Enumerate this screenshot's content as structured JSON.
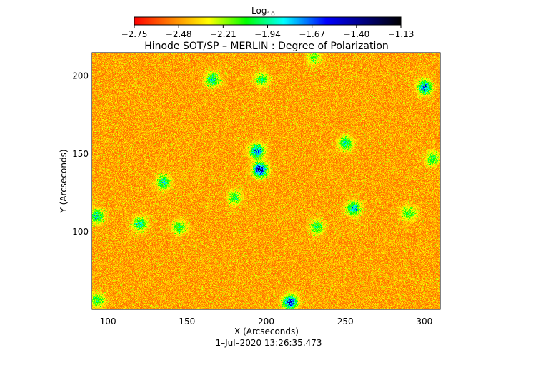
{
  "chart_data": {
    "type": "heatmap",
    "title": "Hinode SOT/SP – MERLIN : Degree of Polarization",
    "xlabel": "X (Arcseconds)",
    "ylabel": "Y (Arcseconds)",
    "footer": "1–Jul–2020 13:26:35.473",
    "xlim": [
      90,
      310
    ],
    "ylim": [
      50,
      215
    ],
    "xticks": [
      100,
      150,
      200,
      250,
      300
    ],
    "yticks": [
      100,
      150,
      200
    ],
    "colorbar": {
      "label_base": "Log",
      "label_sub": "10",
      "range": [
        -2.75,
        -1.13
      ],
      "ticks": [
        "−2.75",
        "−2.48",
        "−2.21",
        "−1.94",
        "−1.67",
        "−1.40",
        "−1.13"
      ]
    },
    "colormap": [
      "#ff0000",
      "#ff8000",
      "#ffff00",
      "#00ff00",
      "#00ffff",
      "#0000ff",
      "#000080",
      "#000000"
    ],
    "features": [
      {
        "x": 196,
        "y": 140,
        "strength": 0.9
      },
      {
        "x": 194,
        "y": 152,
        "strength": 0.7
      },
      {
        "x": 215,
        "y": 55,
        "strength": 0.8
      },
      {
        "x": 255,
        "y": 115,
        "strength": 0.6
      },
      {
        "x": 300,
        "y": 193,
        "strength": 0.7
      },
      {
        "x": 166,
        "y": 198,
        "strength": 0.5
      },
      {
        "x": 135,
        "y": 132,
        "strength": 0.5
      },
      {
        "x": 93,
        "y": 110,
        "strength": 0.5
      },
      {
        "x": 120,
        "y": 105,
        "strength": 0.5
      },
      {
        "x": 232,
        "y": 103,
        "strength": 0.4
      },
      {
        "x": 250,
        "y": 157,
        "strength": 0.5
      },
      {
        "x": 145,
        "y": 103,
        "strength": 0.4
      },
      {
        "x": 305,
        "y": 147,
        "strength": 0.4
      },
      {
        "x": 93,
        "y": 56,
        "strength": 0.4
      },
      {
        "x": 180,
        "y": 122,
        "strength": 0.4
      },
      {
        "x": 197,
        "y": 198,
        "strength": 0.4
      },
      {
        "x": 290,
        "y": 112,
        "strength": 0.4
      },
      {
        "x": 230,
        "y": 212,
        "strength": 0.3
      }
    ]
  }
}
